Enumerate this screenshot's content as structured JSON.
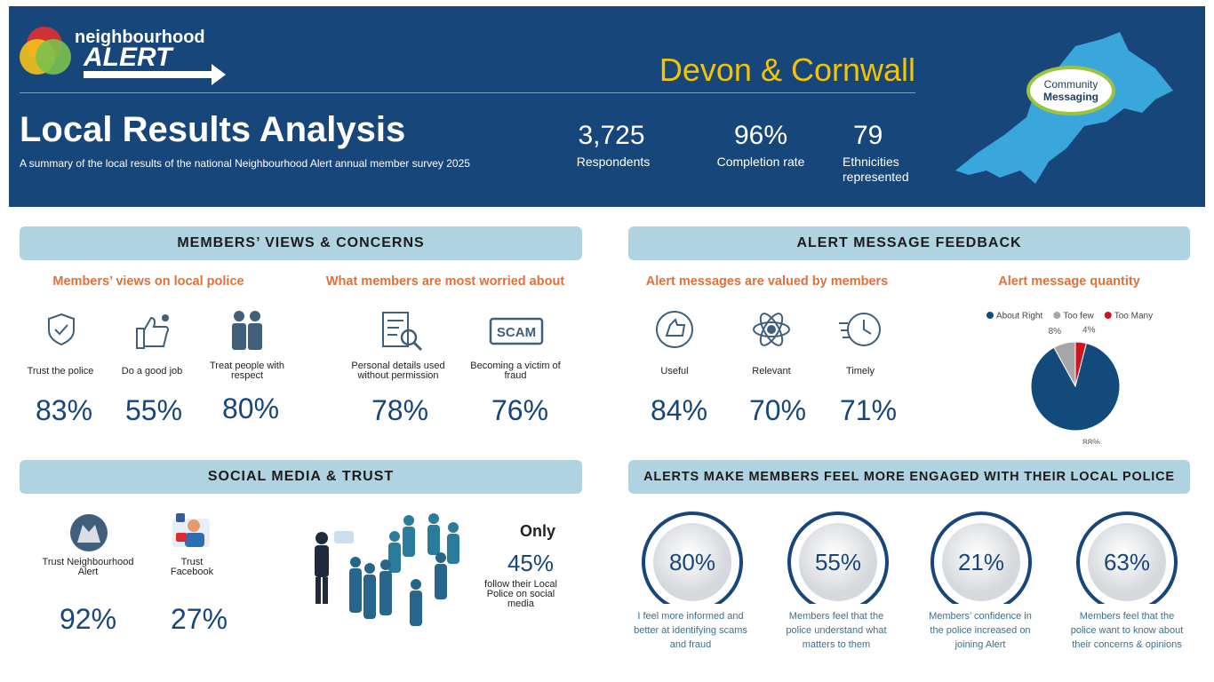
{
  "header": {
    "logo_top": "neighbourhood",
    "logo_bottom": "ALERT",
    "region": "Devon & Cornwall",
    "title": "Local Results Analysis",
    "subtitle": "A summary of the local results of the national Neighbourhood Alert annual member survey 2025",
    "stats": [
      {
        "value": "3,725",
        "label": "Respondents"
      },
      {
        "value": "96%",
        "label": "Completion rate"
      },
      {
        "value": "79",
        "label": "Ethnicities represented"
      }
    ],
    "badge": [
      "Community",
      "Messaging"
    ]
  },
  "views": {
    "heading": "MEMBERS’ VIEWS & CONCERNS",
    "police": {
      "heading": "Members’ views on local police",
      "items": [
        {
          "label": "Trust the police",
          "value": "83%"
        },
        {
          "label": "Do a good job",
          "value": "55%"
        },
        {
          "label": "Treat people with respect",
          "value": "80%"
        }
      ]
    },
    "worries": {
      "heading": "What members are most worried about",
      "items": [
        {
          "label": "Personal details used without permission",
          "value": "78%"
        },
        {
          "label": "Becoming a victim of fraud",
          "value": "76%"
        }
      ],
      "scam_icon": "SCAM"
    }
  },
  "feedback": {
    "heading": "ALERT MESSAGE FEEDBACK",
    "valued": {
      "heading": "Alert messages are valued by members",
      "items": [
        {
          "label": "Useful",
          "value": "84%"
        },
        {
          "label": "Relevant",
          "value": "70%"
        },
        {
          "label": "Timely",
          "value": "71%"
        }
      ]
    }
  },
  "chart_data": {
    "type": "pie",
    "title": "Alert message quantity",
    "categories": [
      "About Right",
      "Too few",
      "Too Many"
    ],
    "values": [
      88,
      8,
      4
    ],
    "value_labels": [
      "88%",
      "8%",
      "4%"
    ],
    "colors": [
      "#124a7c",
      "#a6a6a6",
      "#d0131f"
    ]
  },
  "social": {
    "heading": "SOCIAL MEDIA & TRUST",
    "items": [
      {
        "label": "Trust Neighbourhood Alert",
        "value": "92%"
      },
      {
        "label": "Trust Facebook",
        "value": "27%"
      }
    ],
    "only": "Only",
    "follow_value": "45%",
    "follow_text": "follow their Local Police on social media"
  },
  "engaged": {
    "heading": "ALERTS MAKE MEMBERS FEEL MORE ENGAGED WITH THEIR LOCAL POLICE",
    "items": [
      {
        "value": "80%",
        "label": "I feel more informed and better at identifying scams and fraud"
      },
      {
        "value": "55%",
        "label": "Members feel that the police understand what matters to them"
      },
      {
        "value": "21%",
        "label": "Members’ confidence in the police increased on joining Alert"
      },
      {
        "value": "63%",
        "label": "Members feel that the police want to know about their concerns & opinions"
      }
    ]
  }
}
